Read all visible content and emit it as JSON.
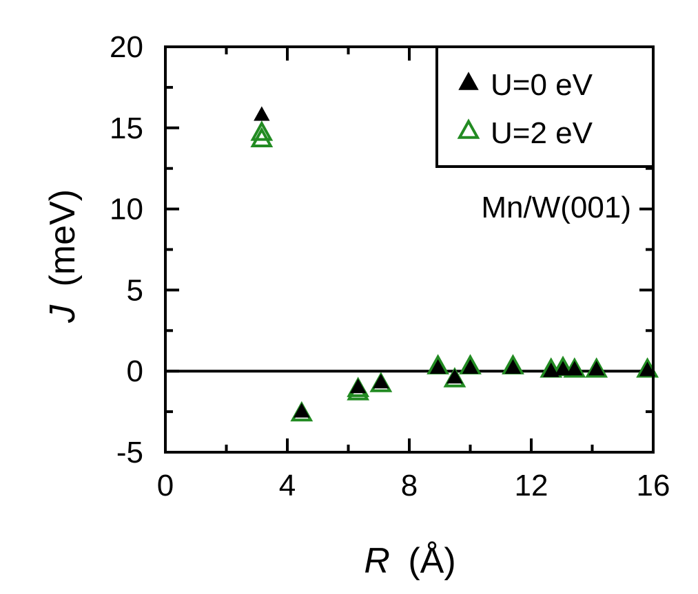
{
  "chart_data": {
    "type": "scatter",
    "title": "",
    "xlabel": {
      "symbol": "R",
      "unit": "(Å)"
    },
    "ylabel": {
      "symbol": "J",
      "unit": "(meV)"
    },
    "xlim": [
      0,
      16
    ],
    "ylim": [
      -5,
      20
    ],
    "x_ticks": [
      0,
      4,
      8,
      12,
      16
    ],
    "x_tick_labels": [
      "0",
      "4",
      "8",
      "12",
      "16"
    ],
    "y_ticks": [
      -5,
      0,
      5,
      10,
      15,
      20
    ],
    "y_tick_labels": [
      "-5",
      "0",
      "5",
      "10",
      "15",
      "20"
    ],
    "zero_line": true,
    "grid": false,
    "annotation": "Mn/W(001)",
    "legend": {
      "placement": "top-right"
    },
    "series": [
      {
        "name": "U=0 eV",
        "marker": "filled-triangle",
        "color": "#000000",
        "points": [
          [
            3.16,
            15.8
          ],
          [
            4.47,
            -2.5
          ],
          [
            6.32,
            -1.0
          ],
          [
            7.07,
            -0.7
          ],
          [
            8.94,
            0.2
          ],
          [
            9.49,
            -0.4
          ],
          [
            10.0,
            0.2
          ],
          [
            11.4,
            0.2
          ],
          [
            12.65,
            0.0
          ],
          [
            13.04,
            0.1
          ],
          [
            13.42,
            0.1
          ],
          [
            14.14,
            0.1
          ],
          [
            15.81,
            0.05
          ]
        ]
      },
      {
        "name": "U=2 eV",
        "marker": "open-triangle",
        "color": "#228B22",
        "points": [
          [
            3.16,
            14.3
          ],
          [
            3.16,
            14.7
          ],
          [
            4.47,
            -2.6
          ],
          [
            6.32,
            -1.3
          ],
          [
            6.32,
            -1.1
          ],
          [
            7.07,
            -0.8
          ],
          [
            8.94,
            0.3
          ],
          [
            9.49,
            -0.5
          ],
          [
            10.0,
            0.3
          ],
          [
            11.4,
            0.3
          ],
          [
            12.65,
            0.1
          ],
          [
            13.04,
            0.2
          ],
          [
            13.42,
            0.1
          ],
          [
            14.14,
            0.1
          ],
          [
            15.81,
            0.1
          ]
        ]
      }
    ]
  }
}
